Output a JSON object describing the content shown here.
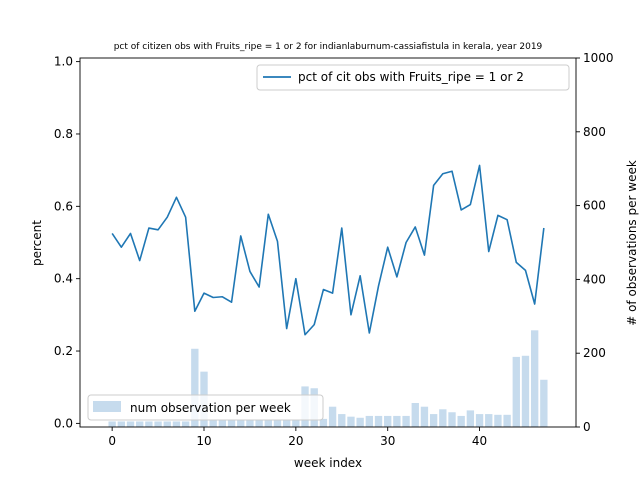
{
  "chart_data": {
    "type": "bar+line",
    "title": "pct of citizen obs with Fruits_ripe = 1 or 2 for indianlaburnum-cassiafistula in kerala, year 2019",
    "xlabel": "week index",
    "ylabel_left": "percent",
    "ylabel_right": "# of observations per week",
    "xlim": [
      -3.5,
      50.5
    ],
    "ylim_left": [
      -0.01,
      1.01
    ],
    "ylim_right": [
      0,
      1000
    ],
    "x_ticks": [
      0,
      10,
      20,
      30,
      40
    ],
    "y_ticks_left": [
      0.0,
      0.2,
      0.4,
      0.6,
      0.8,
      1.0
    ],
    "y_tick_labels_left": [
      "0.0",
      "0.2",
      "0.4",
      "0.6",
      "0.8",
      "1.0"
    ],
    "y_ticks_right": [
      0,
      200,
      400,
      600,
      800,
      1000
    ],
    "grid": false,
    "colors": {
      "line": "#1f77b4",
      "bars": "#c6dbed"
    },
    "line_series": {
      "name": "pct of cit obs with Fruits_ripe = 1 or 2",
      "legend_position": "upper right",
      "x": [
        0,
        1,
        2,
        3,
        4,
        5,
        6,
        7,
        8,
        9,
        10,
        11,
        12,
        13,
        14,
        15,
        16,
        17,
        18,
        19,
        20,
        21,
        22,
        23,
        24,
        25,
        26,
        27,
        28,
        29,
        30,
        31,
        32,
        33,
        34,
        35,
        36,
        37,
        38,
        39,
        40,
        41,
        42,
        43,
        44,
        45,
        46,
        47
      ],
      "values": [
        0.525,
        0.487,
        0.525,
        0.45,
        0.54,
        0.535,
        0.57,
        0.625,
        0.57,
        0.31,
        0.36,
        0.348,
        0.35,
        0.335,
        0.518,
        0.42,
        0.377,
        0.578,
        0.503,
        0.262,
        0.4,
        0.245,
        0.273,
        0.37,
        0.36,
        0.54,
        0.3,
        0.408,
        0.25,
        0.38,
        0.487,
        0.405,
        0.5,
        0.543,
        0.465,
        0.658,
        0.69,
        0.697,
        0.59,
        0.605,
        0.713,
        0.475,
        0.575,
        0.563,
        0.445,
        0.423,
        0.33,
        0.54
      ]
    },
    "bar_series": {
      "name": "num observation per week",
      "legend_position": "lower left",
      "x": [
        0,
        1,
        2,
        3,
        4,
        5,
        6,
        7,
        8,
        9,
        10,
        11,
        12,
        13,
        14,
        15,
        16,
        17,
        18,
        19,
        20,
        21,
        22,
        23,
        24,
        25,
        26,
        27,
        28,
        29,
        30,
        31,
        32,
        33,
        34,
        35,
        36,
        37,
        38,
        39,
        40,
        41,
        42,
        43,
        44,
        45,
        46,
        47
      ],
      "values": [
        15,
        15,
        15,
        15,
        15,
        15,
        15,
        15,
        15,
        212,
        150,
        18,
        18,
        18,
        18,
        18,
        18,
        18,
        18,
        18,
        18,
        110,
        105,
        22,
        55,
        35,
        28,
        25,
        30,
        30,
        30,
        30,
        30,
        65,
        55,
        35,
        48,
        40,
        30,
        45,
        35,
        35,
        33,
        33,
        190,
        193,
        262,
        128
      ]
    }
  }
}
